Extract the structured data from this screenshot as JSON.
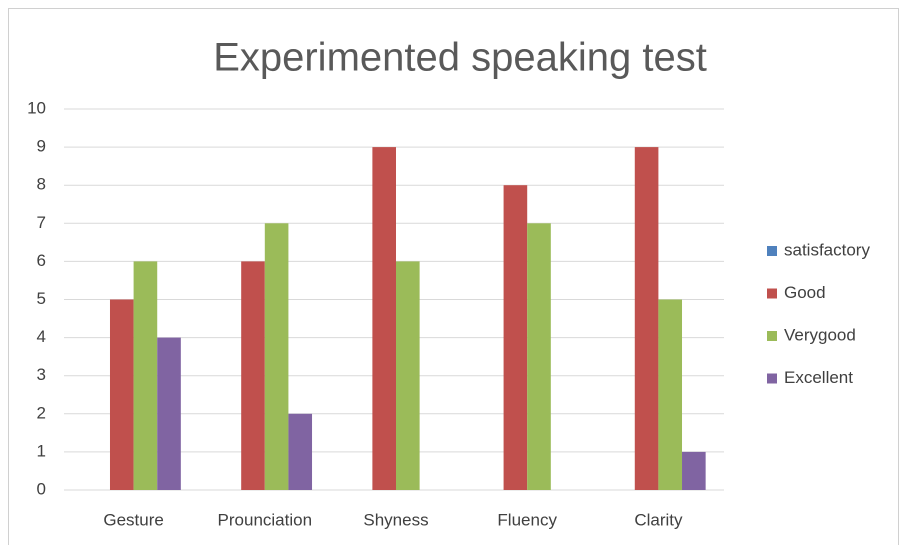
{
  "chart_data": {
    "type": "bar",
    "title": "Experimented speaking test",
    "categories": [
      "Gesture",
      "Prounciation",
      "Shyness",
      "Fluency",
      "Clarity"
    ],
    "series": [
      {
        "name": "satisfactory",
        "color": "#4f81bd",
        "values": [
          0,
          0,
          0,
          0,
          0
        ]
      },
      {
        "name": "Good",
        "color": "#c0504d",
        "values": [
          5,
          6,
          9,
          8,
          9
        ]
      },
      {
        "name": "Verygood",
        "color": "#9bbb59",
        "values": [
          6,
          7,
          6,
          7,
          5
        ]
      },
      {
        "name": "Excellent",
        "color": "#8064a2",
        "values": [
          4,
          2,
          0,
          0,
          1
        ]
      }
    ],
    "ylim": [
      0,
      10
    ],
    "yticks": [
      0,
      1,
      2,
      3,
      4,
      5,
      6,
      7,
      8,
      9,
      10
    ],
    "grid": true,
    "legend": "right"
  }
}
